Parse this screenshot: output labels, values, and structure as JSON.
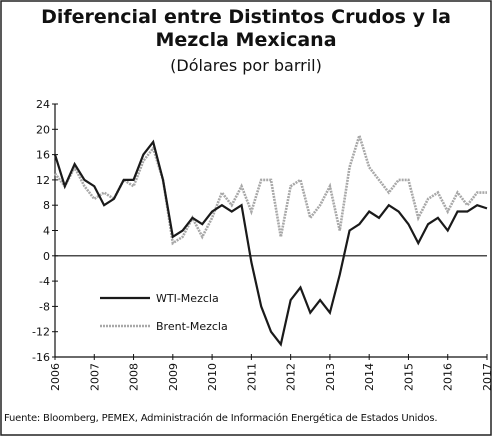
{
  "chart_data": {
    "type": "line",
    "title": "Diferencial entre Distintos Crudos y la Mezcla Mexicana",
    "subtitle": "(Dólares por barril)",
    "note": "Fuente: Bloomberg, PEMEX, Administración de Información Energética de Estados Unidos.",
    "x": [
      2006,
      2006.25,
      2006.5,
      2006.75,
      2007,
      2007.25,
      2007.5,
      2007.75,
      2008,
      2008.25,
      2008.5,
      2008.75,
      2009,
      2009.25,
      2009.5,
      2009.75,
      2010,
      2010.25,
      2010.5,
      2010.75,
      2011,
      2011.25,
      2011.5,
      2011.75,
      2012,
      2012.25,
      2012.5,
      2012.75,
      2013,
      2013.25,
      2013.5,
      2013.75,
      2014,
      2014.25,
      2014.5,
      2014.75,
      2015,
      2015.25,
      2015.5,
      2015.75,
      2016,
      2016.25,
      2016.5,
      2016.75,
      2017
    ],
    "series": [
      {
        "name": "WTI-Mezcla",
        "color": "#1a1a1a",
        "values": [
          16,
          11,
          14.5,
          12,
          11,
          8,
          9,
          12,
          12,
          16,
          18,
          12,
          3,
          4,
          6,
          5,
          7,
          8,
          7,
          8,
          -1,
          -8,
          -12,
          -14,
          -7,
          -5,
          -9,
          -7,
          -9,
          -3,
          4,
          5,
          7,
          6,
          8,
          7,
          5,
          2,
          5,
          6,
          4,
          7,
          7,
          8,
          7.5
        ]
      },
      {
        "name": "Brent-Mezcla",
        "color": "#a8a8a8",
        "values": [
          13,
          11,
          14,
          11,
          9,
          10,
          9,
          12,
          11,
          15,
          17,
          12,
          2,
          3,
          6,
          3,
          6,
          10,
          8,
          11,
          7,
          12,
          12,
          3,
          11,
          12,
          6,
          8,
          11,
          4,
          14,
          19,
          14,
          12,
          10,
          12,
          12,
          6,
          9,
          10,
          7,
          10,
          8,
          10,
          10
        ]
      }
    ],
    "xlim": [
      2006,
      2017
    ],
    "xticks": [
      2006,
      2007,
      2008,
      2009,
      2010,
      2011,
      2012,
      2013,
      2014,
      2015,
      2016,
      2017
    ],
    "ylim": [
      -16,
      24
    ],
    "yticks": [
      24,
      20,
      16,
      12,
      8,
      4,
      0,
      -4,
      -8,
      -12,
      -16
    ]
  }
}
